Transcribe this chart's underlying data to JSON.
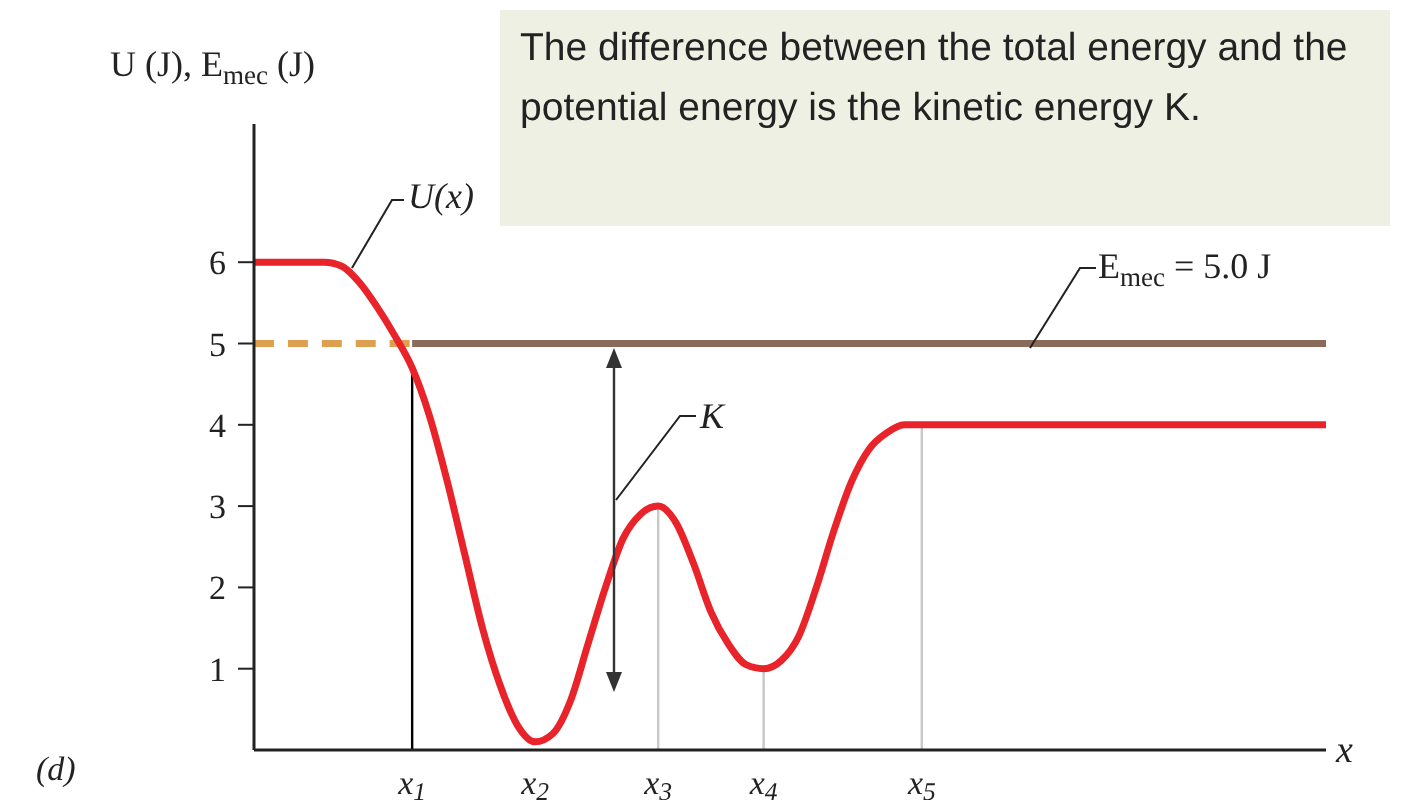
{
  "chart_data": {
    "type": "line",
    "ylabel": "U (J), E$_{mec}$ (J)",
    "xlabel": "x",
    "categories": [
      null,
      null,
      null,
      null,
      null,
      null,
      null,
      null,
      null,
      "x$_{1}$",
      null,
      null,
      null,
      null,
      null,
      null,
      "x$_{2}$",
      null,
      null,
      null,
      null,
      null,
      null,
      "x$_{3}$",
      null,
      null,
      null,
      null,
      null,
      "x$_{4}$",
      null,
      null,
      null,
      null,
      null,
      null,
      null,
      null,
      "x$_{5}$",
      null,
      null,
      null,
      null,
      null,
      null,
      null,
      null,
      null,
      null,
      null,
      null,
      null,
      null,
      null,
      null,
      null,
      null,
      null,
      null,
      null,
      null,
      null
    ],
    "series": [
      {
        "name": "U(x)",
        "color": "#e8232a",
        "values": [
          6,
          6,
          6,
          6,
          6,
          5.95,
          5.75,
          5.45,
          5.1,
          4.7,
          4.1,
          3.3,
          2.4,
          1.5,
          0.8,
          0.3,
          0.1,
          0.2,
          0.6,
          1.3,
          2.0,
          2.6,
          2.9,
          3.0,
          2.8,
          2.3,
          1.7,
          1.3,
          1.05,
          1.0,
          1.1,
          1.4,
          2.0,
          2.7,
          3.3,
          3.7,
          3.9,
          4.0,
          4.0,
          4.0,
          4.0,
          4.0,
          4.0,
          4.0,
          4.0,
          4.0,
          4.0,
          4.0,
          4.0,
          4.0,
          4.0,
          4.0,
          4.0,
          4.0,
          4.0,
          4.0,
          4.0,
          4.0,
          4.0,
          4.0,
          4.0,
          4.0
        ]
      },
      {
        "name": "E$_{mec}$ = 5.0 J",
        "color": "#8b6b5a",
        "values": [
          null,
          null,
          null,
          null,
          null,
          null,
          null,
          null,
          null,
          5,
          5,
          5,
          5,
          5,
          5,
          5,
          5,
          5,
          5,
          5,
          5,
          5,
          5,
          5,
          5,
          5,
          5,
          5,
          5,
          5,
          5,
          5,
          5,
          5,
          5,
          5,
          5,
          5,
          5,
          5,
          5,
          5,
          5,
          5,
          5,
          5,
          5,
          5,
          5,
          5,
          5,
          5,
          5,
          5,
          5,
          5,
          5,
          5,
          5,
          5,
          5,
          5
        ]
      },
      {
        "color": "#dda050",
        "line_style": "dashed",
        "values": [
          5,
          5,
          5,
          5,
          5,
          5,
          5,
          5,
          5,
          5,
          null,
          null,
          null,
          null,
          null,
          null,
          null,
          null,
          null,
          null,
          null,
          null,
          null,
          null,
          null,
          null,
          null,
          null,
          null,
          null,
          null,
          null,
          null,
          null,
          null,
          null,
          null,
          null,
          null,
          null,
          null,
          null,
          null,
          null,
          null,
          null,
          null,
          null,
          null,
          null,
          null,
          null,
          null,
          null,
          null,
          null,
          null,
          null,
          null,
          null,
          null,
          null
        ]
      }
    ],
    "ylim": [
      0,
      7.7
    ],
    "yticks": [
      1,
      2,
      3,
      4,
      5,
      6
    ],
    "grid": false,
    "legend": false,
    "ref_lines": [
      {
        "axis": "x",
        "value": "x$_{1}$",
        "color": "#000000"
      },
      {
        "axis": "x",
        "value": "x$_{3}$",
        "color": "#c8c8c8"
      },
      {
        "axis": "x",
        "value": "x$_{4}$",
        "color": "#c8c8c8"
      },
      {
        "axis": "x",
        "value": "x$_{5}$",
        "color": "#c8c8c8"
      }
    ],
    "annotations": [
      "The difference between the total energy and the potential energy is the kinetic energy K.",
      "K",
      "(d)"
    ]
  }
}
